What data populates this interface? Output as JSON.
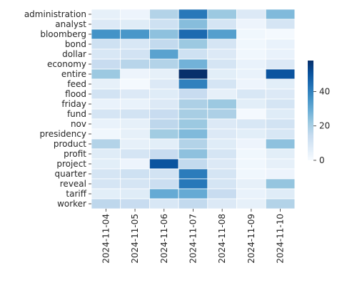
{
  "chart_data": {
    "type": "heatmap",
    "rows": [
      "administration",
      "analyst",
      "bloomberg",
      "bond",
      "dollar",
      "economy",
      "entire",
      "feed",
      "flood",
      "friday",
      "fund",
      "nov",
      "presidency",
      "product",
      "profit",
      "project",
      "quarter",
      "reveal",
      "tariff",
      "worker"
    ],
    "columns": [
      "2024-11-04",
      "2024-11-05",
      "2024-11-06",
      "2024-11-07",
      "2024-11-08",
      "2024-11-09",
      "2024-11-10"
    ],
    "values": [
      [
        5,
        3,
        18,
        42,
        22,
        8,
        26
      ],
      [
        8,
        7,
        12,
        25,
        10,
        3,
        10
      ],
      [
        36,
        35,
        24,
        45,
        33,
        2,
        1
      ],
      [
        12,
        9,
        15,
        22,
        10,
        2,
        4
      ],
      [
        9,
        11,
        32,
        12,
        8,
        2,
        4
      ],
      [
        14,
        17,
        18,
        28,
        10,
        4,
        8
      ],
      [
        22,
        3,
        5,
        58,
        6,
        4,
        50
      ],
      [
        5,
        1,
        8,
        40,
        10,
        3,
        6
      ],
      [
        11,
        8,
        7,
        14,
        5,
        9,
        8
      ],
      [
        4,
        4,
        8,
        19,
        22,
        6,
        10
      ],
      [
        10,
        11,
        14,
        20,
        19,
        1,
        7
      ],
      [
        4,
        5,
        16,
        22,
        8,
        9,
        11
      ],
      [
        2,
        5,
        21,
        26,
        8,
        6,
        9
      ],
      [
        18,
        5,
        6,
        18,
        7,
        3,
        24
      ],
      [
        7,
        10,
        14,
        24,
        10,
        2,
        6
      ],
      [
        6,
        3,
        50,
        15,
        8,
        2,
        5
      ],
      [
        10,
        12,
        11,
        41,
        10,
        2,
        3
      ],
      [
        10,
        10,
        13,
        42,
        10,
        5,
        23
      ],
      [
        6,
        7,
        30,
        30,
        14,
        4,
        7
      ],
      [
        16,
        14,
        9,
        15,
        8,
        5,
        18
      ]
    ],
    "vmin": 0,
    "vmax": 58,
    "colorbar_ticks": [
      0,
      20,
      40
    ],
    "colormap": [
      "#f7fbff",
      "#deebf7",
      "#c6dbef",
      "#9ecae1",
      "#6baed6",
      "#4292c6",
      "#2171b5",
      "#08519c",
      "#08306b"
    ],
    "cell_border_color": "#ffffff"
  }
}
